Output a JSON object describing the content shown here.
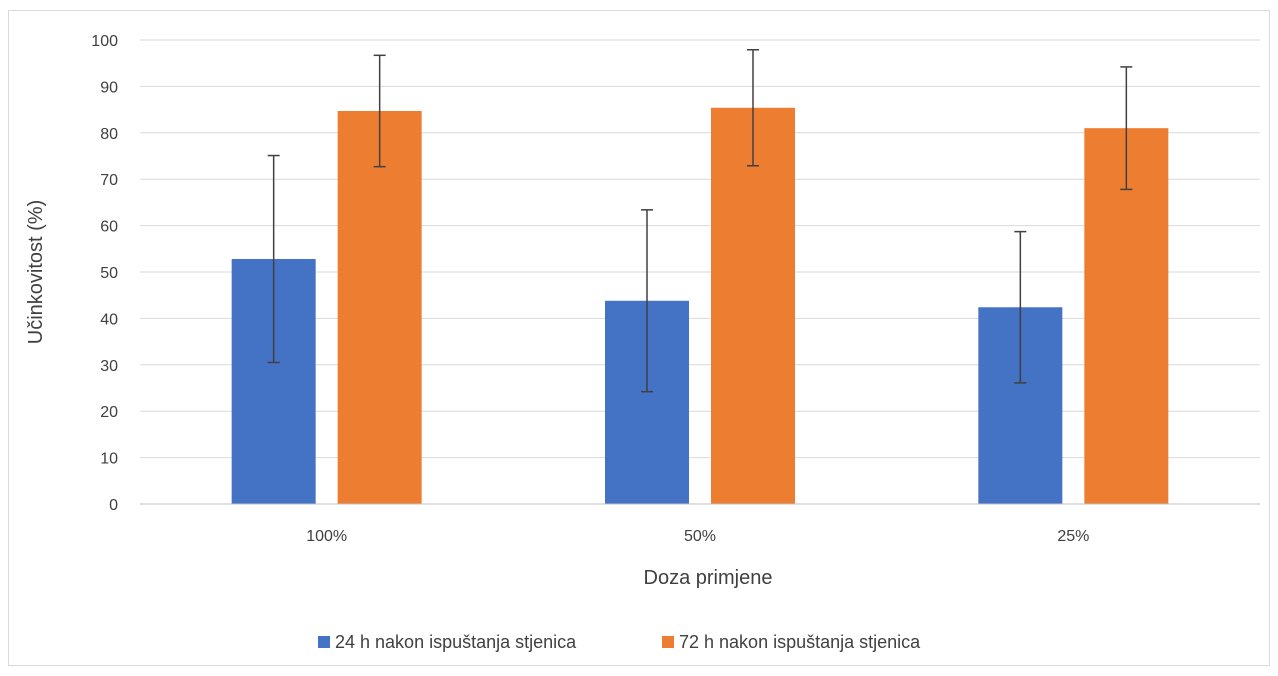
{
  "chart_data": {
    "type": "bar",
    "title": "",
    "xlabel": "Doza primjene",
    "ylabel": "Učinkovitost (%)",
    "categories": [
      "100%",
      "50%",
      "25%"
    ],
    "ylim": [
      0,
      100
    ],
    "yticks": [
      0,
      10,
      20,
      30,
      40,
      50,
      60,
      70,
      80,
      90,
      100
    ],
    "grid": true,
    "legend_position": "bottom",
    "series": [
      {
        "name": "24 h nakon ispuštanja stjenica",
        "color": "#4472C4",
        "values": [
          52.8,
          43.8,
          42.4
        ],
        "error": [
          22.3,
          19.6,
          16.3
        ]
      },
      {
        "name": "72 h nakon ispuštanja stjenica",
        "color": "#ED7D31",
        "values": [
          84.7,
          85.4,
          81.0
        ],
        "error": [
          12.0,
          12.5,
          13.2
        ]
      }
    ]
  }
}
